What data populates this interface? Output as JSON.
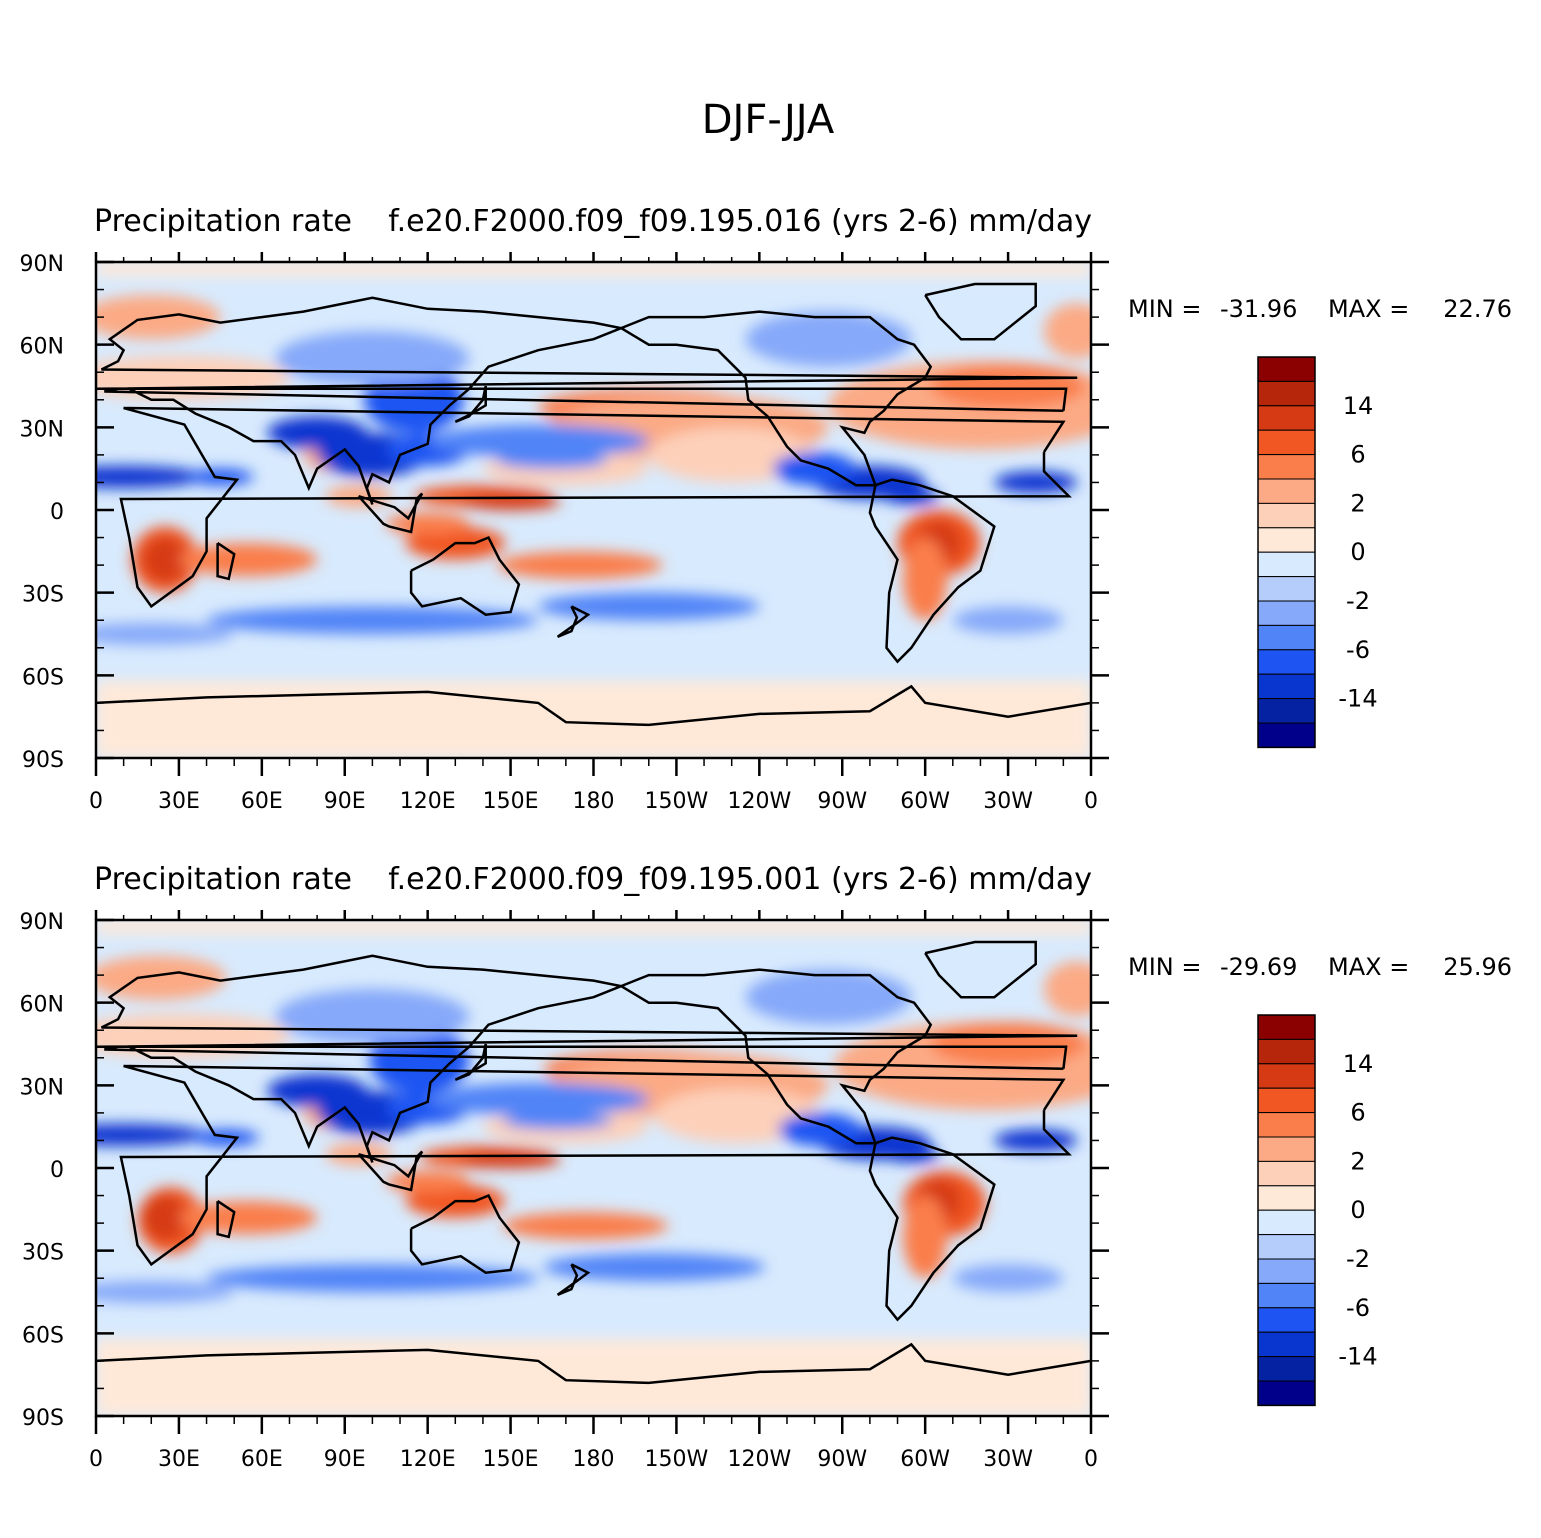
{
  "page": {
    "title": "DJF-JJA"
  },
  "panels": [
    {
      "title_left": "Precipitation rate",
      "title_right": "f.e20.F2000.f09_f09.195.016 (yrs 2-6) mm/day",
      "min_label": "MIN =",
      "min_value": "-31.96",
      "max_label": "MAX =",
      "max_value": "22.76"
    },
    {
      "title_left": "Precipitation rate",
      "title_right": "f.e20.F2000.f09_f09.195.001 (yrs 2-6) mm/day",
      "min_label": "MIN =",
      "min_value": "-29.69",
      "max_label": "MAX =",
      "max_value": "25.96"
    }
  ],
  "axes": {
    "lat_labels": [
      "90N",
      "60N",
      "30N",
      "0",
      "30S",
      "60S",
      "90S"
    ],
    "lon_labels": [
      "0",
      "30E",
      "60E",
      "90E",
      "120E",
      "150E",
      "180",
      "150W",
      "120W",
      "90W",
      "60W",
      "30W",
      "0"
    ]
  },
  "colorbar": {
    "colors": [
      "#8b0000",
      "#b5260b",
      "#d63a14",
      "#f15722",
      "#fa7e4b",
      "#fbaa85",
      "#fdd0b9",
      "#fee9d9",
      "#d8eafd",
      "#b4cdfb",
      "#86a9f9",
      "#5184f7",
      "#1e55f2",
      "#0a36d0",
      "#0522a3",
      "#00008b"
    ],
    "labels": [
      "14",
      "6",
      "2",
      "0",
      "-2",
      "-6",
      "-14"
    ]
  },
  "legend_colors": {
    "land_outline": "#000000",
    "positive": "#e85a2c",
    "negative": "#1f48d8",
    "near_zero_pos": "#fee9d9",
    "near_zero_neg": "#d8eafd"
  },
  "chart_data": [
    {
      "type": "heatmap",
      "title": "DJF-JJA",
      "subtitle": "Precipitation rate f.e20.F2000.f09_f09.195.016 (yrs 2-6) mm/day",
      "units": "mm/day",
      "projection": "cylindrical equidistant",
      "xlim": [
        0,
        360
      ],
      "ylim": [
        -90,
        90
      ],
      "x_ticks": [
        "0",
        "30E",
        "60E",
        "90E",
        "120E",
        "150E",
        "180",
        "150W",
        "120W",
        "90W",
        "60W",
        "30W",
        "0"
      ],
      "y_ticks": [
        "90N",
        "60N",
        "30N",
        "0",
        "30S",
        "60S",
        "90S"
      ],
      "min": -31.96,
      "max": 22.76,
      "contour_levels_labeled": [
        14,
        6,
        2,
        0,
        -2,
        -6,
        -14
      ]
    },
    {
      "type": "heatmap",
      "title": "DJF-JJA",
      "subtitle": "Precipitation rate f.e20.F2000.f09_f09.195.001 (yrs 2-6) mm/day",
      "units": "mm/day",
      "projection": "cylindrical equidistant",
      "xlim": [
        0,
        360
      ],
      "ylim": [
        -90,
        90
      ],
      "x_ticks": [
        "0",
        "30E",
        "60E",
        "90E",
        "120E",
        "150E",
        "180",
        "150W",
        "120W",
        "90W",
        "60W",
        "30W",
        "0"
      ],
      "y_ticks": [
        "90N",
        "60N",
        "30N",
        "0",
        "30S",
        "60S",
        "90S"
      ],
      "min": -29.69,
      "max": 25.96,
      "contour_levels_labeled": [
        14,
        6,
        2,
        0,
        -2,
        -6,
        -14
      ]
    }
  ]
}
